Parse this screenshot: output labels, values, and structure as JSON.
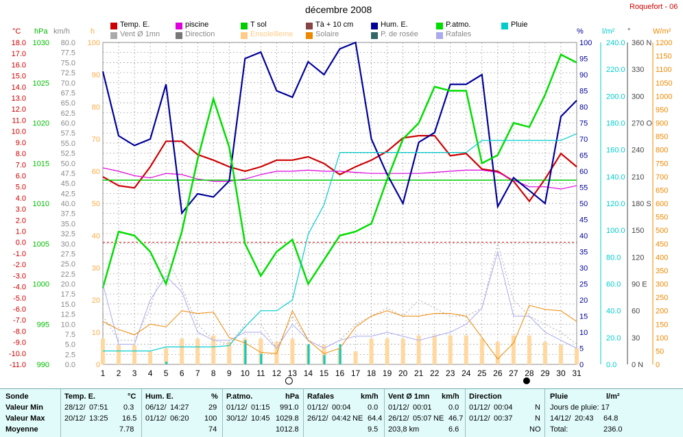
{
  "header": {
    "title": "décembre 2008",
    "station": "Roquefort - 06"
  },
  "legend": [
    {
      "label": "Temp. E.",
      "color": "#cc0000"
    },
    {
      "label": "piscine",
      "color": "#dd00dd"
    },
    {
      "label": "T sol",
      "color": "#00cc00"
    },
    {
      "label": "Tà + 10 cm",
      "color": "#884444"
    },
    {
      "label": "Hum. E.",
      "color": "#000099"
    },
    {
      "label": "P.atmo.",
      "color": "#00dd00"
    },
    {
      "label": "Pluie",
      "color": "#00cccc"
    },
    {
      "label": "Vent Ø 1mn",
      "color": "#aaaaaa"
    },
    {
      "label": "Direction",
      "color": "#777777"
    },
    {
      "label": "Ensoleilleme",
      "color": "#ffcc88"
    },
    {
      "label": "Solaire",
      "color": "#ee8800"
    },
    {
      "label": "P. de rosée",
      "color": "#336666"
    },
    {
      "label": "Rafales",
      "color": "#aaaaee"
    }
  ],
  "axis_units": {
    "temp": "°C",
    "press": "hPa",
    "wind": "km/h",
    "sun": "h",
    "hum": "%",
    "rain": "l/m²",
    "dir": "°",
    "solar": "W/m²"
  },
  "axes": {
    "temp": [
      "18.0",
      "17.0",
      "16.0",
      "15.0",
      "14.0",
      "13.0",
      "12.0",
      "11.0",
      "10.0",
      "9.0",
      "8.0",
      "7.0",
      "6.0",
      "5.0",
      "4.0",
      "3.0",
      "2.0",
      "1.0",
      "0.0",
      "-1.0",
      "-2.0",
      "-3.0",
      "-4.0",
      "-5.0",
      "-6.0",
      "-7.0",
      "-8.0",
      "-9.0",
      "-10.0",
      "-11.0"
    ],
    "press": [
      "1030",
      "1025",
      "1020",
      "1015",
      "1010",
      "1005",
      "1000",
      "995",
      "990"
    ],
    "wind": [
      "80.0",
      "77.5",
      "75.0",
      "72.5",
      "70.0",
      "67.5",
      "65.0",
      "62.5",
      "60.0",
      "57.5",
      "55.0",
      "52.5",
      "50.0",
      "47.5",
      "45.0",
      "42.5",
      "40.0",
      "37.5",
      "35.0",
      "32.5",
      "30.0",
      "27.5",
      "25.0",
      "22.5",
      "20.0",
      "17.5",
      "15.0",
      "12.5",
      "10.0",
      "7.5",
      "5.0",
      "2.5",
      "0.0"
    ],
    "sun": [
      "100",
      "90",
      "80",
      "70",
      "60",
      "50",
      "40",
      "30",
      "20",
      "10",
      "0"
    ],
    "hum": [
      "100",
      "95",
      "90",
      "85",
      "80",
      "75",
      "70",
      "65",
      "60",
      "55",
      "50",
      "45",
      "40",
      "35",
      "30",
      "25",
      "20",
      "15",
      "10",
      "5",
      "0"
    ],
    "rain": [
      "240.0",
      "220.0",
      "200.0",
      "180.0",
      "160.0",
      "140.0",
      "120.0",
      "100.0",
      "80.0",
      "60.0",
      "40.0",
      "20.0",
      "0.0"
    ],
    "dir": [
      "360 N",
      "330",
      "300",
      "270 O",
      "240",
      "210",
      "180 S",
      "150",
      "120",
      "90  E",
      "60",
      "30",
      "0   N"
    ],
    "solar": [
      "1200",
      "1150",
      "1100",
      "1050",
      "1000",
      "950",
      "900",
      "850",
      "800",
      "750",
      "700",
      "650",
      "600",
      "550",
      "500",
      "450",
      "400",
      "350",
      "300",
      "250",
      "200",
      "150",
      "100",
      "50",
      "0"
    ]
  },
  "chart_data": {
    "type": "line",
    "title": "décembre 2008",
    "x": [
      1,
      2,
      3,
      4,
      5,
      6,
      7,
      8,
      9,
      10,
      11,
      12,
      13,
      14,
      15,
      16,
      17,
      18,
      19,
      20,
      21,
      22,
      23,
      24,
      25,
      26,
      27,
      28,
      29,
      30,
      31
    ],
    "xlim": [
      1,
      31
    ],
    "series": [
      {
        "name": "Temp. E.",
        "axis": "temp",
        "values": [
          5.9,
          5.1,
          4.9,
          6.8,
          9.1,
          9.1,
          7.9,
          7.4,
          6.8,
          6.4,
          6.8,
          7.4,
          7.4,
          7.7,
          7.1,
          6.1,
          6.8,
          7.4,
          8.2,
          9.4,
          9.6,
          9.6,
          7.8,
          8.0,
          6.6,
          6.4,
          5.5,
          3.7,
          5.7,
          8.0,
          6.8
        ]
      },
      {
        "name": "piscine",
        "axis": "temp",
        "values": [
          6.7,
          6.4,
          6.0,
          5.8,
          6.2,
          6.1,
          5.7,
          5.5,
          5.5,
          5.7,
          6.1,
          6.4,
          6.4,
          6.5,
          6.4,
          6.4,
          6.3,
          6.2,
          6.2,
          6.2,
          6.2,
          6.3,
          6.4,
          6.5,
          6.5,
          6.3,
          5.6,
          5.0,
          5.0,
          4.8,
          5.1
        ]
      },
      {
        "name": "T sol",
        "axis": "temp",
        "values": [
          5.6,
          5.6,
          5.6,
          5.6,
          5.6,
          5.6,
          5.6,
          5.6,
          5.6,
          5.6,
          5.6,
          5.6,
          5.6,
          5.6,
          5.6,
          5.6,
          5.6,
          5.6,
          5.6,
          5.6,
          5.6,
          5.6,
          5.6,
          5.6,
          5.6,
          5.6,
          5.6,
          5.6,
          5.6,
          5.6,
          5.6
        ]
      },
      {
        "name": "Hum. E.",
        "axis": "hum",
        "values": [
          91,
          71,
          68,
          70,
          87,
          47,
          53,
          52,
          57,
          95,
          97,
          85,
          83,
          94,
          90,
          98,
          100,
          70,
          59,
          50,
          69,
          72,
          87,
          87,
          90,
          49,
          58,
          54,
          50,
          77,
          82
        ]
      },
      {
        "name": "P.atmo.",
        "axis": "press",
        "values": [
          999.5,
          1006.5,
          1006.0,
          1004.0,
          1000.0,
          1006.5,
          1015.5,
          1023.0,
          1017.0,
          1005.0,
          1001.0,
          1004.0,
          1005.5,
          1000.0,
          1003.0,
          1006.0,
          1006.5,
          1007.5,
          1013.0,
          1018.0,
          1020.0,
          1024.5,
          1024.0,
          1024.0,
          1015.0,
          1016.0,
          1020.0,
          1019.5,
          1023.5,
          1028.5,
          1027.5
        ]
      },
      {
        "name": "Pluie",
        "axis": "rain",
        "values": [
          10,
          10,
          10,
          10,
          13,
          13,
          13,
          13,
          14,
          28,
          40,
          40,
          48,
          97,
          119,
          158,
          158,
          158,
          158,
          158,
          158,
          158,
          158,
          158,
          167,
          167,
          167,
          167,
          167,
          167,
          172
        ]
      },
      {
        "name": "Vent Ø 1mn",
        "axis": "wind",
        "values": [
          12,
          6,
          6,
          14,
          27,
          19,
          10,
          6,
          5,
          10,
          10,
          4,
          12,
          6,
          4,
          6,
          10,
          12,
          14,
          12,
          16,
          14,
          12,
          12,
          14,
          30,
          16,
          12,
          10,
          8,
          5
        ]
      },
      {
        "name": "Rafales",
        "axis": "wind",
        "values": [
          20,
          5,
          5,
          16,
          22,
          18,
          8,
          6,
          6,
          8,
          8,
          4,
          10,
          6,
          4,
          6,
          7,
          7,
          8,
          7,
          6,
          7,
          8,
          10,
          14,
          28,
          12,
          12,
          8,
          6,
          4
        ]
      },
      {
        "name": "Solaire",
        "axis": "solar",
        "values": [
          160,
          130,
          110,
          150,
          140,
          200,
          190,
          195,
          100,
          80,
          45,
          40,
          200,
          90,
          40,
          60,
          140,
          180,
          200,
          180,
          180,
          190,
          190,
          180,
          100,
          20,
          80,
          220,
          205,
          200,
          160
        ]
      },
      {
        "name": "Ensoleilleme",
        "axis": "sun",
        "values": [
          8,
          6,
          6,
          4,
          5,
          8,
          8,
          9,
          7,
          8,
          8,
          7,
          8,
          6,
          6,
          5,
          4,
          8,
          8,
          8,
          9,
          9,
          9,
          9,
          8,
          7,
          9,
          9,
          7,
          6,
          5
        ]
      }
    ],
    "rain_bars": [
      0,
      0,
      0,
      0,
      2,
      0,
      0,
      0,
      0,
      18,
      8,
      0,
      0,
      15,
      7,
      15,
      0,
      0,
      0,
      0,
      0,
      0,
      0,
      0,
      0,
      0,
      0,
      0,
      0,
      0,
      0
    ],
    "threshold_zero_temp": 0.0
  },
  "stats": {
    "sonde": {
      "head": "Sonde",
      "min": "Valeur Min",
      "max": "Valeur Max",
      "avg": "Moyenne"
    },
    "temp": {
      "head": "Temp. E.",
      "unit": "°C",
      "min_d": "28/12/",
      "min_t": "07:51",
      "min_v": "0.3",
      "max_d": "20/12/",
      "max_t": "13:25",
      "max_v": "16.5",
      "avg": "7.78"
    },
    "hum": {
      "head": "Hum. E.",
      "unit": "%",
      "min_d": "06/12/",
      "min_t": "14:27",
      "min_v": "29",
      "max_d": "01/12/",
      "max_t": "06:20",
      "max_v": "100",
      "avg": "74"
    },
    "press": {
      "head": "P.atmo.",
      "unit": "hPa",
      "min_d": "01/12/",
      "min_t": "01:15",
      "min_v": "991.0",
      "max_d": "30/12/",
      "max_t": "10:45",
      "max_v": "1029.8",
      "avg": "1012.8"
    },
    "gust": {
      "head": "Rafales",
      "unit": "km/h",
      "min_d": "01/12/",
      "min_t": "00:04",
      "min_v": "0.0",
      "max_d": "26/12/",
      "max_t": "04:42",
      "max_dir": "NE",
      "max_v": "64.4",
      "avg": "9.5"
    },
    "wind": {
      "head": "Vent Ø 1mn",
      "unit": "km/h",
      "min_d": "01/12/",
      "min_t": "00:01",
      "min_v": "0.0",
      "max_d": "26/12/",
      "max_t": "05:07",
      "max_dir": "NE",
      "max_v": "46.7",
      "avg_dist": "203,8 km",
      "avg": "6.6"
    },
    "dir": {
      "head": "Direction",
      "min_d": "01/12/",
      "min_t": "00:04",
      "min_v": "N",
      "max_d": "01/12/",
      "max_t": "00:37",
      "max_v": "N",
      "avg": "NO"
    },
    "rain": {
      "head": "Pluie",
      "unit": "l/m²",
      "days": "Jours de pluie: 17",
      "max_d": "14/12/",
      "max_t": "20:43",
      "max_v": "64.8",
      "total_label": "Total:",
      "total": "236.0"
    }
  },
  "x_markers": {
    "new_moon_day": "13",
    "full_moon_day": "28"
  }
}
